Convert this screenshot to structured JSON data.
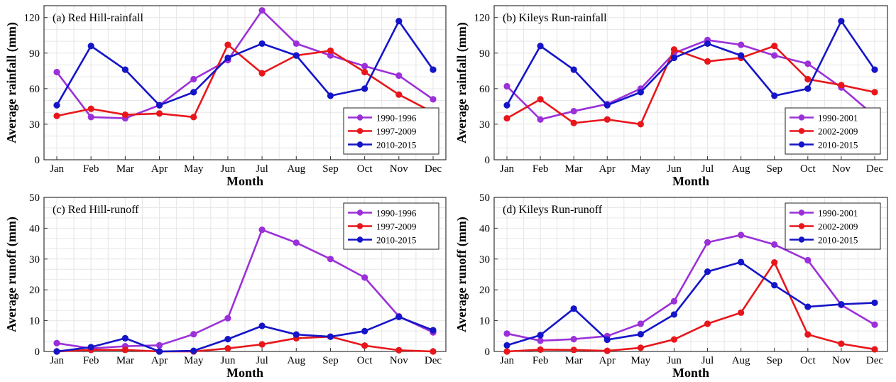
{
  "chart_data": [
    {
      "type": "line",
      "title": "(a) Red Hill-rainfall",
      "xlabel": "Month",
      "ylabel": "Average rainfall (mm)",
      "categories": [
        "Jan",
        "Feb",
        "Mar",
        "Apr",
        "May",
        "Jun",
        "Jul",
        "Aug",
        "Sep",
        "Oct",
        "Nov",
        "Dec"
      ],
      "ylim": [
        0,
        130
      ],
      "yticks": [
        0,
        30,
        60,
        90,
        120
      ],
      "grid": true,
      "legend_position": "bottom-right",
      "series": [
        {
          "name": "1990-1996",
          "color": "#9B30D9",
          "values": [
            74,
            36,
            35,
            46,
            68,
            84,
            126,
            98,
            88,
            79,
            71,
            51
          ]
        },
        {
          "name": "1997-2009",
          "color": "#E8161B",
          "values": [
            37,
            43,
            38,
            39,
            36,
            97,
            73,
            88,
            92,
            74,
            55,
            40
          ]
        },
        {
          "name": "2010-2015",
          "color": "#1414C8",
          "values": [
            46,
            96,
            76,
            46,
            57,
            86,
            98,
            88,
            54,
            60,
            117,
            76
          ]
        }
      ]
    },
    {
      "type": "line",
      "title": "(b) Kileys Run-rainfall",
      "xlabel": "Month",
      "ylabel": "Average rainfall (mm)",
      "categories": [
        "Jan",
        "Feb",
        "Mar",
        "Apr",
        "May",
        "Jun",
        "Jul",
        "Aug",
        "Sep",
        "Oct",
        "Nov",
        "Dec"
      ],
      "ylim": [
        0,
        130
      ],
      "yticks": [
        0,
        30,
        60,
        90,
        120
      ],
      "grid": true,
      "legend_position": "bottom-right",
      "series": [
        {
          "name": "1990-2001",
          "color": "#9B30D9",
          "values": [
            62,
            34,
            41,
            47,
            60,
            90,
            101,
            97,
            88,
            81,
            61,
            37
          ]
        },
        {
          "name": "2002-2009",
          "color": "#E8161B",
          "values": [
            35,
            51,
            31,
            34,
            30,
            93,
            83,
            86,
            96,
            68,
            63,
            57
          ]
        },
        {
          "name": "2010-2015",
          "color": "#1414C8",
          "values": [
            46,
            96,
            76,
            46,
            57,
            86,
            98,
            88,
            54,
            60,
            117,
            76
          ]
        }
      ]
    },
    {
      "type": "line",
      "title": "(c) Red Hill-runoff",
      "xlabel": "Month",
      "ylabel": "Average runoff (mm)",
      "categories": [
        "Jan",
        "Feb",
        "Mar",
        "Apr",
        "May",
        "Jun",
        "Jul",
        "Aug",
        "Sep",
        "Oct",
        "Nov",
        "Dec"
      ],
      "ylim": [
        0,
        50
      ],
      "yticks": [
        0,
        10,
        20,
        30,
        40,
        50
      ],
      "grid": true,
      "legend_position": "top-right",
      "series": [
        {
          "name": "1990-1996",
          "color": "#9B30D9",
          "values": [
            2.7,
            1.0,
            1.7,
            2.0,
            5.6,
            10.8,
            39.5,
            35.3,
            30.0,
            24.0,
            11.4,
            6.2
          ]
        },
        {
          "name": "1997-2009",
          "color": "#E8161B",
          "values": [
            0.0,
            0.5,
            0.5,
            0.0,
            0.0,
            1.0,
            2.3,
            4.3,
            4.8,
            1.9,
            0.4,
            0.0
          ]
        },
        {
          "name": "2010-2015",
          "color": "#1414C8",
          "values": [
            0.0,
            1.4,
            4.3,
            0.0,
            0.2,
            4.0,
            8.3,
            5.5,
            4.8,
            6.6,
            11.2,
            6.9
          ]
        }
      ]
    },
    {
      "type": "line",
      "title": "(d) Kileys Run-runoff",
      "xlabel": "Month",
      "ylabel": "Average runoff (mm)",
      "categories": [
        "Jan",
        "Feb",
        "Mar",
        "Apr",
        "May",
        "Jun",
        "Jul",
        "Aug",
        "Sep",
        "Oct",
        "Nov",
        "Dec"
      ],
      "ylim": [
        0,
        50
      ],
      "yticks": [
        0,
        10,
        20,
        30,
        40,
        50
      ],
      "grid": true,
      "legend_position": "top-right",
      "series": [
        {
          "name": "1990-2001",
          "color": "#9B30D9",
          "values": [
            5.8,
            3.5,
            4.0,
            5.0,
            9.0,
            16.3,
            35.4,
            37.8,
            34.7,
            29.6,
            15.1,
            8.7
          ]
        },
        {
          "name": "2002-2009",
          "color": "#E8161B",
          "values": [
            0.0,
            0.6,
            0.5,
            0.2,
            1.2,
            3.9,
            9.0,
            12.6,
            28.9,
            5.5,
            2.5,
            0.7
          ]
        },
        {
          "name": "2010-2015",
          "color": "#1414C8",
          "values": [
            2.0,
            5.3,
            13.9,
            3.8,
            5.6,
            12.0,
            25.9,
            29.0,
            21.5,
            14.5,
            15.3,
            15.8
          ]
        }
      ]
    }
  ]
}
